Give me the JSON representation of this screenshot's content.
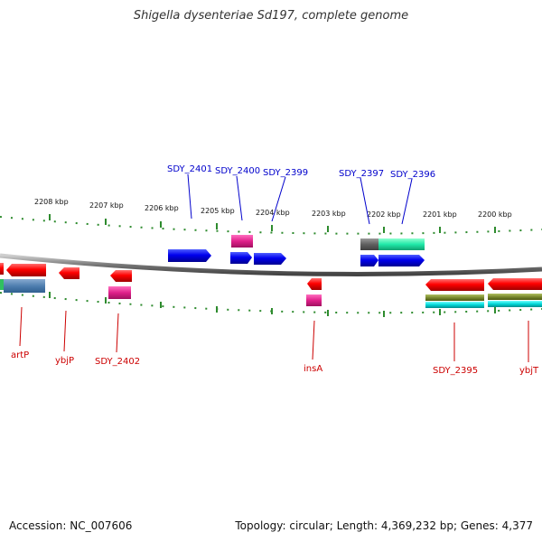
{
  "title": "Shigella dysenteriae Sd197, complete genome",
  "footer": {
    "accession": "Accession: NC_007606",
    "topology": "Topology: circular; Length: 4,369,232 bp; Genes: 4,377"
  },
  "scale": {
    "ticks": [
      "2208 kbp",
      "2207 kbp",
      "2206 kbp",
      "2205 kbp",
      "2204 kbp",
      "2203 kbp",
      "2202 kbp",
      "2201 kbp",
      "2200 kbp"
    ]
  },
  "genes_above": [
    "SDY_2401",
    "SDY_2400",
    "SDY_2399",
    "SDY_2397",
    "SDY_2396"
  ],
  "genes_below": [
    "artP",
    "ybjP",
    "SDY_2402",
    "insA",
    "SDY_2395",
    "ybjT"
  ],
  "colors": {
    "forward_cds": "#0000ee",
    "reverse_cds": "#ee0000",
    "pseudo": "#e0208a",
    "backbone": "#888888",
    "ticks": "#2e8b2e",
    "label_forward": "#0000cc",
    "label_reverse": "#cc0000"
  }
}
